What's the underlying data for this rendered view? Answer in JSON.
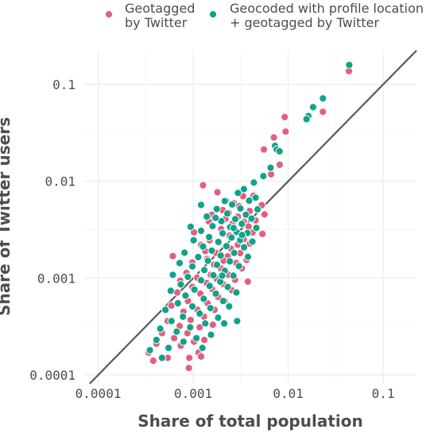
{
  "chart_data": {
    "type": "scatter",
    "title": "",
    "xlabel": "Share of total population",
    "ylabel": "Share of Twitter users",
    "x_scale": "log10",
    "y_scale": "log10",
    "xlim": [
      7.13e-05,
      0.224
    ],
    "ylim": [
      8.13e-05,
      0.226
    ],
    "x_ticks": [
      0.0001,
      0.001,
      0.01,
      0.1
    ],
    "x_tick_labels": [
      "0.0001",
      "0.001",
      "0.01",
      "0.1"
    ],
    "y_ticks": [
      0.0001,
      0.001,
      0.01,
      0.1
    ],
    "y_tick_labels": [
      "0.0001",
      "0.001",
      "0.01",
      "0.1"
    ],
    "grid": true,
    "reference_line": "y = x",
    "legend_position": "top",
    "colors": {
      "pink": "#e0607e",
      "teal": "#10a38b",
      "line": "#595959"
    },
    "series": [
      {
        "name": "Geotagged\nby Twitter",
        "color": "#e0607e",
        "points": [
          [
            0.0436,
            0.137
          ],
          [
            0.0232,
            0.0521
          ],
          [
            0.0092,
            0.0461
          ],
          [
            0.0094,
            0.0326
          ],
          [
            0.00707,
            0.0283
          ],
          [
            0.00814,
            0.0148
          ],
          [
            0.00555,
            0.0213
          ],
          [
            0.00661,
            0.0118
          ],
          [
            0.0018,
            0.0077
          ],
          [
            0.00127,
            0.00911
          ],
          [
            0.00335,
            0.00701
          ],
          [
            0.00431,
            0.0071
          ],
          [
            0.00223,
            0.00626
          ],
          [
            0.00267,
            0.00596
          ],
          [
            0.00527,
            0.00565
          ],
          [
            0.00305,
            0.00553
          ],
          [
            0.00204,
            0.00504
          ],
          [
            0.00394,
            0.00493
          ],
          [
            0.00237,
            0.00471
          ],
          [
            0.00157,
            0.00451
          ],
          [
            0.00296,
            0.00431
          ],
          [
            0.00563,
            0.00455
          ],
          [
            0.00219,
            0.0041
          ],
          [
            0.00342,
            0.0038
          ],
          [
            0.00146,
            0.00385
          ],
          [
            0.00453,
            0.00395
          ],
          [
            0.00259,
            0.00365
          ],
          [
            0.00383,
            0.00341
          ],
          [
            0.00102,
            0.00297
          ],
          [
            0.00197,
            0.00321
          ],
          [
            0.00292,
            0.00293
          ],
          [
            0.00422,
            0.00296
          ],
          [
            0.00242,
            0.00275
          ],
          [
            0.00149,
            0.00246
          ],
          [
            0.0034,
            0.00251
          ],
          [
            0.00536,
            0.00286
          ],
          [
            0.00187,
            0.00231
          ],
          [
            0.00295,
            0.00221
          ],
          [
            0.00121,
            0.0022
          ],
          [
            0.0025,
            0.00201
          ],
          [
            0.00395,
            0.00227
          ],
          [
            0.00173,
            0.00182
          ],
          [
            0.00061,
            0.00169
          ],
          [
            0.00312,
            0.00181
          ],
          [
            0.00231,
            0.00168
          ],
          [
            0.0014,
            0.00158
          ],
          [
            0.00209,
            0.00151
          ],
          [
            0.00098,
            0.00145
          ],
          [
            0.00365,
            0.00154
          ],
          [
            0.00166,
            0.00138
          ],
          [
            0.00284,
            0.00143
          ],
          [
            0.00128,
            0.00121
          ],
          [
            0.00196,
            0.00126
          ],
          [
            0.00085,
            0.00113
          ],
          [
            0.00325,
            0.00126
          ],
          [
            0.00153,
            0.00108
          ],
          [
            0.00237,
            0.00108
          ],
          [
            0.0011,
            0.00101
          ],
          [
            0.00073,
            0.00094
          ],
          [
            0.00177,
            0.00098
          ],
          [
            0.00276,
            0.00096
          ],
          [
            0.00138,
            0.00089
          ],
          [
            0.00206,
            0.00087
          ],
          [
            0.00098,
            0.00081
          ],
          [
            0.00376,
            0.00092
          ],
          [
            0.00158,
            0.00077
          ],
          [
            0.00068,
            0.00071
          ],
          [
            0.00119,
            0.00069
          ],
          [
            0.00255,
            0.00075
          ],
          [
            0.00183,
            0.00064
          ],
          [
            0.00088,
            0.00058
          ],
          [
            0.00142,
            0.00055
          ],
          [
            0.00059,
            0.00052
          ],
          [
            0.00215,
            0.00058
          ],
          [
            0.00111,
            0.00047
          ],
          [
            0.00079,
            0.00045
          ],
          [
            0.00168,
            0.00047
          ],
          [
            0.0013,
            0.0004
          ],
          [
            0.00094,
            0.00037
          ],
          [
            0.00054,
            0.00036
          ],
          [
            0.00072,
            0.00032
          ],
          [
            0.00117,
            0.00031
          ],
          [
            0.00047,
            0.00027
          ],
          [
            0.00161,
            0.00033
          ],
          [
            0.00087,
            0.00027
          ],
          [
            0.00063,
            0.00024
          ],
          [
            0.00102,
            0.00022
          ],
          [
            0.00041,
            0.00021
          ],
          [
            0.00131,
            0.00023
          ],
          [
            0.00074,
            0.0002
          ],
          [
            0.00034,
            0.00017
          ],
          [
            0.00114,
            0.00017
          ],
          [
            0.00091,
            0.00015
          ],
          [
            0.00054,
            0.00015
          ],
          [
            0.00038,
            0.00014
          ],
          [
            0.0009,
            0.000118
          ],
          [
            0.00134,
            0.0019
          ],
          [
            0.00121,
            0.000155
          ]
        ]
      },
      {
        "name": "Geocoded with profile location\n+ geotagged by Twitter",
        "color": "#10a38b",
        "points": [
          [
            0.0439,
            0.159
          ],
          [
            0.0232,
            0.0717
          ],
          [
            0.0183,
            0.0583
          ],
          [
            0.0163,
            0.0472
          ],
          [
            0.0156,
            0.0438
          ],
          [
            0.00727,
            0.0232
          ],
          [
            0.00757,
            0.0213
          ],
          [
            0.00811,
            0.0204
          ],
          [
            0.00653,
            0.0138
          ],
          [
            0.00548,
            0.0113
          ],
          [
            0.00435,
            0.00969
          ],
          [
            0.00342,
            0.0083
          ],
          [
            0.00296,
            0.00757
          ],
          [
            0.00454,
            0.00677
          ],
          [
            0.00215,
            0.00625
          ],
          [
            0.00388,
            0.0063
          ],
          [
            0.00257,
            0.00576
          ],
          [
            0.00314,
            0.00524
          ],
          [
            0.00177,
            0.00517
          ],
          [
            0.00476,
            0.00512
          ],
          [
            0.00229,
            0.00465
          ],
          [
            0.00359,
            0.00451
          ],
          [
            0.00139,
            0.00432
          ],
          [
            0.00277,
            0.00407
          ],
          [
            0.00411,
            0.00412
          ],
          [
            0.00198,
            0.00387
          ],
          [
            0.00325,
            0.00363
          ],
          [
            0.0016,
            0.00344
          ],
          [
            0.00245,
            0.00336
          ],
          [
            0.00462,
            0.0033
          ],
          [
            0.00121,
            0.00308
          ],
          [
            0.00287,
            0.00299
          ],
          [
            0.00204,
            0.0029
          ],
          [
            0.00373,
            0.00292
          ],
          [
            0.00147,
            0.00265
          ],
          [
            0.00253,
            0.00262
          ],
          [
            0.00101,
            0.00246
          ],
          [
            0.00312,
            0.00247
          ],
          [
            0.00184,
            0.00236
          ],
          [
            0.0042,
            0.00238
          ],
          [
            0.00127,
            0.00212
          ],
          [
            0.00224,
            0.00214
          ],
          [
            0.00343,
            0.00208
          ],
          [
            0.00157,
            0.00192
          ],
          [
            0.00081,
            0.00183
          ],
          [
            0.0027,
            0.00182
          ],
          [
            0.00195,
            0.00171
          ],
          [
            0.00113,
            0.00165
          ],
          [
            0.00377,
            0.00166
          ],
          [
            0.00143,
            0.00151
          ],
          [
            0.00243,
            0.00149
          ],
          [
            0.00072,
            0.00143
          ],
          [
            0.00178,
            0.00137
          ],
          [
            0.00098,
            0.00132
          ],
          [
            0.00303,
            0.00133
          ],
          [
            0.00131,
            0.00121
          ],
          [
            0.00215,
            0.00119
          ],
          [
            0.00061,
            0.00108
          ],
          [
            0.00163,
            0.00107
          ],
          [
            0.00088,
            0.00103
          ],
          [
            0.00265,
            0.00106
          ],
          [
            0.00121,
            0.00095
          ],
          [
            0.00193,
            0.00092
          ],
          [
            0.00074,
            0.00086
          ],
          [
            0.00149,
            0.00083
          ],
          [
            0.00231,
            0.00081
          ],
          [
            0.00103,
            0.00076
          ],
          [
            0.00058,
            0.00074
          ],
          [
            0.00173,
            0.00069
          ],
          [
            0.00083,
            0.00066
          ],
          [
            0.00285,
            0.00071
          ],
          [
            0.00129,
            0.00061
          ],
          [
            0.00207,
            0.00058
          ],
          [
            0.00069,
            0.00055
          ],
          [
            0.00098,
            0.00051
          ],
          [
            0.00152,
            0.00049
          ],
          [
            0.00051,
            0.00047
          ],
          [
            0.00239,
            0.00051
          ],
          [
            0.00117,
            0.00043
          ],
          [
            0.00078,
            0.0004
          ],
          [
            0.00183,
            0.00039
          ],
          [
            0.00059,
            0.00036
          ],
          [
            0.00134,
            0.00034
          ],
          [
            0.00093,
            0.00031
          ],
          [
            0.00045,
            0.0003
          ],
          [
            0.00212,
            0.00034
          ],
          [
            0.00067,
            0.00028
          ],
          [
            0.00154,
            0.00026
          ],
          [
            0.00108,
            0.00024
          ],
          [
            0.00041,
            0.00023
          ],
          [
            0.00079,
            0.00022
          ],
          [
            0.00055,
            0.00019
          ],
          [
            0.00125,
            0.00019
          ],
          [
            0.00035,
            0.00018
          ],
          [
            0.00047,
            0.00015
          ],
          [
            0.0029,
            0.00036
          ],
          [
            0.00327,
            0.00279
          ],
          [
            0.00266,
            0.00329
          ],
          [
            0.00121,
            0.0057
          ],
          [
            0.00172,
            0.00419
          ],
          [
            0.00094,
            0.00339
          ],
          [
            0.00202,
            0.00106
          ]
        ]
      }
    ]
  }
}
